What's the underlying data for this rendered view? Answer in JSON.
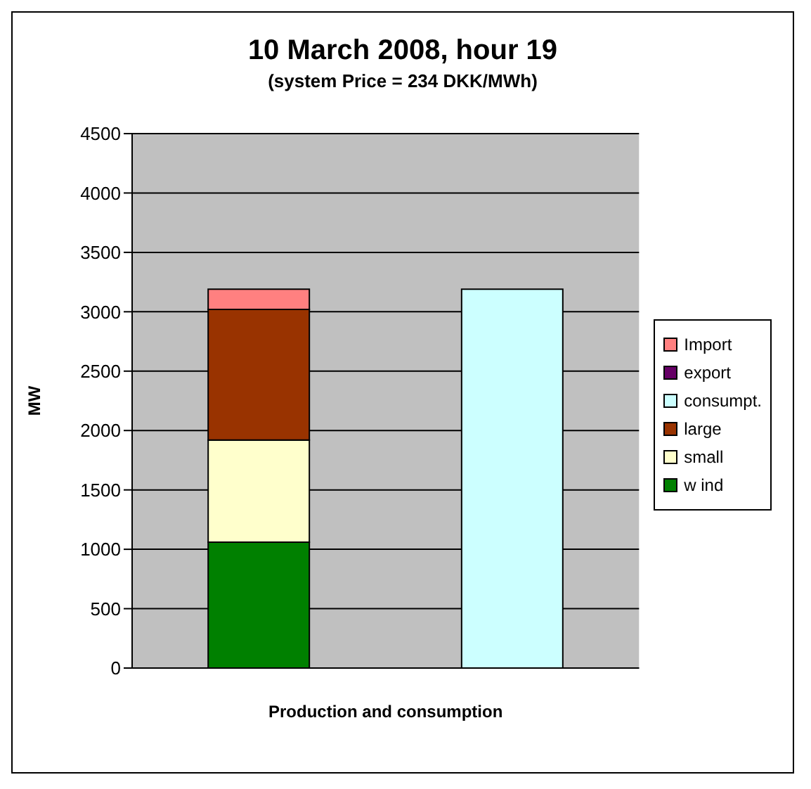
{
  "chart_data": {
    "type": "bar",
    "title": "10 March 2008, hour 19",
    "subtitle": "(system Price = 234 DKK/MWh)",
    "xlabel": "Production and consumption",
    "ylabel": "MW",
    "categories": [
      null,
      null
    ],
    "stacked": true,
    "ylim": [
      0,
      4500
    ],
    "yticks": [
      0,
      500,
      1000,
      1500,
      2000,
      2500,
      3000,
      3500,
      4000,
      4500
    ],
    "grid": "y",
    "legend": "right",
    "series": [
      {
        "name": "w ind",
        "color": "#008000",
        "values": [
          1060,
          null
        ]
      },
      {
        "name": "small",
        "color": "#ffffcc",
        "values": [
          860,
          null
        ]
      },
      {
        "name": "large",
        "color": "#993300",
        "values": [
          1100,
          null
        ]
      },
      {
        "name": "consumpt.",
        "color": "#ccffff",
        "values": [
          null,
          3190
        ]
      },
      {
        "name": "export",
        "color": "#660066",
        "values": [
          null,
          null
        ]
      },
      {
        "name": "Import",
        "color": "#ff8080",
        "values": [
          170,
          null
        ]
      }
    ]
  }
}
